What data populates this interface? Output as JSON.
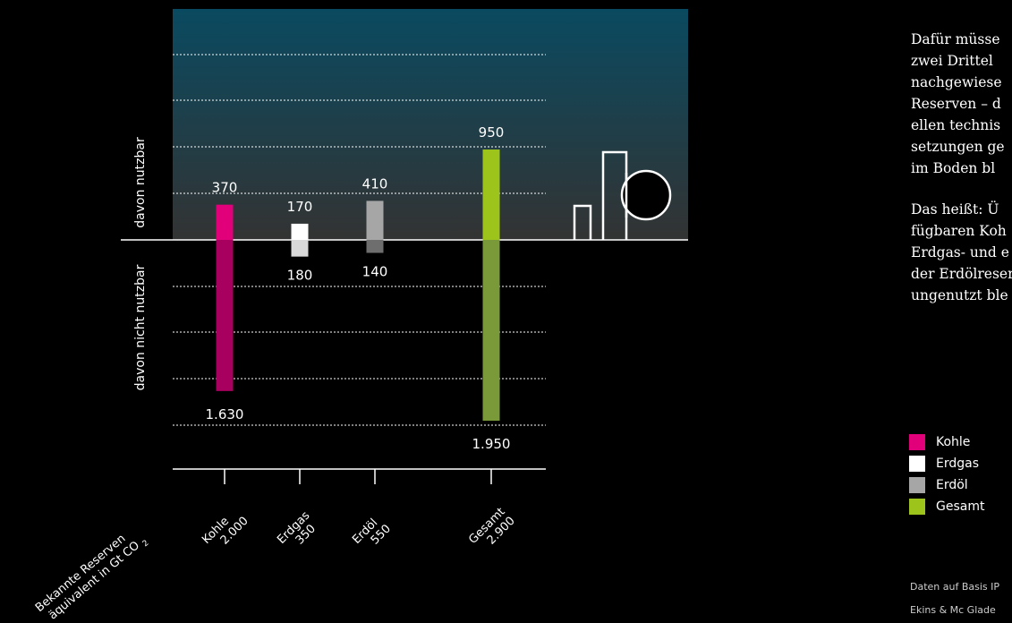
{
  "chart_data": {
    "type": "bar",
    "y_axis_upper_label": "davon nutzbar",
    "y_axis_lower_label": "davon nicht nutzbar",
    "xlabel_line1": "Bekannte Reserven",
    "xlabel_line2": "äquivalent in Gt CO",
    "xlabel_subscript": "2",
    "categories": [
      {
        "name": "Kohle",
        "total": "2.000",
        "usable": 370,
        "not_usable": 1630,
        "usable_label": "370",
        "not_usable_label": "1.630",
        "color": "#E2007A",
        "lower_color": "#A8005E"
      },
      {
        "name": "Erdgas",
        "total": "350",
        "usable": 170,
        "not_usable": 180,
        "usable_label": "170",
        "not_usable_label": "180",
        "color": "#FFFFFF",
        "lower_color": "#D9D9D9"
      },
      {
        "name": "Erdöl",
        "total": "550",
        "usable": 410,
        "not_usable": 140,
        "usable_label": "410",
        "not_usable_label": "140",
        "color": "#A6A6A6",
        "lower_color": "#6E6E6E"
      },
      {
        "name": "Gesamt",
        "total": "2.900",
        "usable": 950,
        "not_usable": 1950,
        "usable_label": "950",
        "not_usable_label": "1.950",
        "color": "#9DC41A",
        "lower_color": "#7A9A3A"
      }
    ],
    "grid": true
  },
  "text": {
    "p1_lines": [
      "Dafür müsse",
      "zwei Drittel",
      "nachgewiese",
      "Reserven – d",
      "ellen technis",
      "setzungen ge",
      "im Boden bl"
    ],
    "p2_lines": [
      "Das heißt: Ü",
      "fügbaren Koh",
      "Erdgas- und e",
      "der Erdölreser",
      "ungenutzt ble"
    ]
  },
  "legend": [
    {
      "label": "Kohle",
      "color": "#E2007A"
    },
    {
      "label": "Erdgas",
      "color": "#FFFFFF"
    },
    {
      "label": "Erdöl",
      "color": "#A6A6A6"
    },
    {
      "label": "Gesamt",
      "color": "#9DC41A"
    }
  ],
  "source": {
    "line1": "Daten auf Basis IP",
    "line2": "Ekins & Mc Glade"
  },
  "colors": {
    "panel_top": "#0A4A60",
    "panel_bottom": "#333333"
  }
}
